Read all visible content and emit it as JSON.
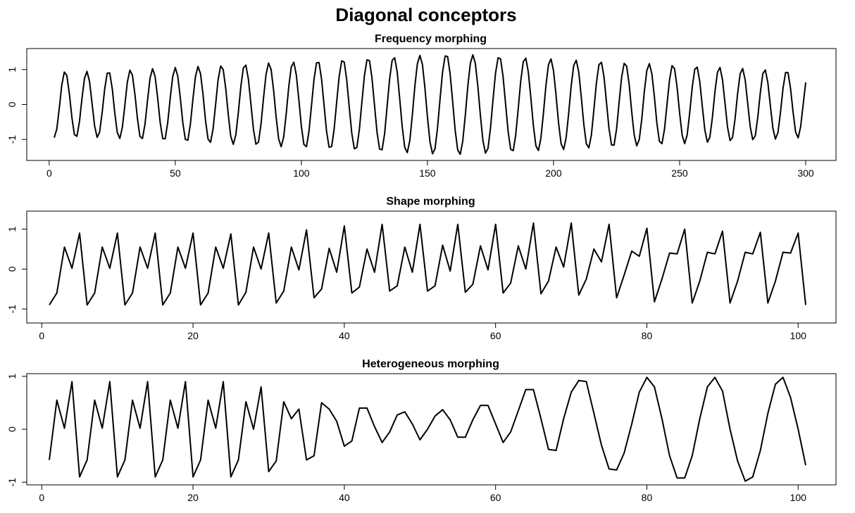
{
  "title": "Diagonal conceptors",
  "chart_data": [
    {
      "type": "line",
      "title": "Frequency morphing",
      "xlabel": "",
      "ylabel": "",
      "xlim": [
        0,
        300
      ],
      "ylim": [
        -1.6,
        1.6
      ],
      "xticks": [
        0,
        50,
        100,
        150,
        200,
        250,
        300
      ],
      "yticks": [
        -1,
        0,
        1
      ],
      "grid": false,
      "x_start": 2,
      "x_end": 300,
      "waveform": {
        "kind": "sinusoid_modulated_frequency",
        "period_at_ends": 8.6,
        "period_at_center": 10.6,
        "amplitude_at_ends": 0.95,
        "amplitude_at_center": 1.45,
        "center_x": 160
      },
      "series": [
        {
          "values_note": "",
          "color": "#000000"
        }
      ]
    },
    {
      "type": "line",
      "title": "Shape morphing",
      "xlabel": "",
      "ylabel": "",
      "xlim": [
        1,
        101
      ],
      "ylim": [
        -1.35,
        1.45
      ],
      "xticks": [
        0,
        20,
        40,
        60,
        80,
        100
      ],
      "yticks": [
        -1,
        0,
        1
      ],
      "grid": false,
      "x": [
        1,
        2,
        3,
        4,
        5,
        6,
        7,
        8,
        9,
        10,
        11,
        12,
        13,
        14,
        15,
        16,
        17,
        18,
        19,
        20,
        21,
        22,
        23,
        24,
        25,
        26,
        27,
        28,
        29,
        30,
        31,
        32,
        33,
        34,
        35,
        36,
        37,
        38,
        39,
        40,
        41,
        42,
        43,
        44,
        45,
        46,
        47,
        48,
        49,
        50,
        51,
        52,
        53,
        54,
        55,
        56,
        57,
        58,
        59,
        60,
        61,
        62,
        63,
        64,
        65,
        66,
        67,
        68,
        69,
        70,
        71,
        72,
        73,
        74,
        75,
        76,
        77,
        78,
        79,
        80,
        81,
        82,
        83,
        84,
        85,
        86,
        87,
        88,
        89,
        90,
        91,
        92,
        93,
        94,
        95,
        96,
        97,
        98,
        99,
        100,
        101
      ],
      "series": [
        {
          "color": "#000000",
          "values": [
            -0.9,
            -0.6,
            0.55,
            0.02,
            0.9,
            -0.9,
            -0.6,
            0.55,
            0.02,
            0.9,
            -0.9,
            -0.6,
            0.55,
            0.02,
            0.9,
            -0.9,
            -0.6,
            0.55,
            0.02,
            0.9,
            -0.9,
            -0.6,
            0.55,
            0.02,
            0.88,
            -0.9,
            -0.58,
            0.55,
            0.0,
            0.9,
            -0.85,
            -0.55,
            0.55,
            -0.02,
            0.98,
            -0.72,
            -0.5,
            0.52,
            -0.08,
            1.08,
            -0.6,
            -0.45,
            0.5,
            -0.08,
            1.12,
            -0.55,
            -0.42,
            0.55,
            -0.08,
            1.12,
            -0.55,
            -0.42,
            0.6,
            -0.05,
            1.12,
            -0.58,
            -0.38,
            0.58,
            -0.02,
            1.12,
            -0.6,
            -0.35,
            0.58,
            0.0,
            1.15,
            -0.62,
            -0.3,
            0.55,
            0.05,
            1.15,
            -0.65,
            -0.25,
            0.5,
            0.18,
            1.12,
            -0.72,
            -0.15,
            0.45,
            0.32,
            1.02,
            -0.82,
            -0.25,
            0.4,
            0.38,
            1.0,
            -0.85,
            -0.3,
            0.42,
            0.38,
            0.95,
            -0.85,
            -0.3,
            0.42,
            0.38,
            0.92,
            -0.85,
            -0.3,
            0.42,
            0.4,
            0.9,
            -0.9
          ]
        }
      ]
    },
    {
      "type": "line",
      "title": "Heterogeneous morphing",
      "xlabel": "",
      "ylabel": "",
      "xlim": [
        1,
        101
      ],
      "ylim": [
        -1.05,
        1.05
      ],
      "xticks": [
        0,
        20,
        40,
        60,
        80,
        100
      ],
      "yticks": [
        -1,
        0,
        1
      ],
      "grid": false,
      "x": [
        1,
        2,
        3,
        4,
        5,
        6,
        7,
        8,
        9,
        10,
        11,
        12,
        13,
        14,
        15,
        16,
        17,
        18,
        19,
        20,
        21,
        22,
        23,
        24,
        25,
        26,
        27,
        28,
        29,
        30,
        31,
        32,
        33,
        34,
        35,
        36,
        37,
        38,
        39,
        40,
        41,
        42,
        43,
        44,
        45,
        46,
        47,
        48,
        49,
        50,
        51,
        52,
        53,
        54,
        55,
        56,
        57,
        58,
        59,
        60,
        61,
        62,
        63,
        64,
        65,
        66,
        67,
        68,
        69,
        70,
        71,
        72,
        73,
        74,
        75,
        76,
        77,
        78,
        79,
        80,
        81,
        82,
        83,
        84,
        85,
        86,
        87,
        88,
        89,
        90,
        91,
        92,
        93,
        94,
        95,
        96,
        97,
        98,
        99,
        100,
        101
      ],
      "series": [
        {
          "color": "#000000",
          "values": [
            -0.58,
            0.55,
            0.02,
            0.9,
            -0.9,
            -0.58,
            0.55,
            0.02,
            0.9,
            -0.9,
            -0.58,
            0.55,
            0.02,
            0.9,
            -0.9,
            -0.58,
            0.55,
            0.02,
            0.9,
            -0.9,
            -0.58,
            0.55,
            0.02,
            0.9,
            -0.9,
            -0.58,
            0.52,
            0.0,
            0.8,
            -0.8,
            -0.6,
            0.52,
            0.2,
            0.38,
            -0.58,
            -0.5,
            0.5,
            0.38,
            0.15,
            -0.32,
            -0.22,
            0.4,
            0.4,
            0.05,
            -0.25,
            -0.05,
            0.27,
            0.33,
            0.1,
            -0.2,
            0.0,
            0.25,
            0.37,
            0.18,
            -0.15,
            -0.15,
            0.18,
            0.45,
            0.45,
            0.1,
            -0.25,
            -0.05,
            0.35,
            0.75,
            0.75,
            0.2,
            -0.38,
            -0.4,
            0.2,
            0.7,
            0.92,
            0.9,
            0.3,
            -0.3,
            -0.75,
            -0.77,
            -0.45,
            0.1,
            0.7,
            0.98,
            0.8,
            0.2,
            -0.5,
            -0.92,
            -0.92,
            -0.5,
            0.2,
            0.8,
            0.98,
            0.72,
            0.0,
            -0.6,
            -0.98,
            -0.9,
            -0.4,
            0.3,
            0.85,
            0.98,
            0.6,
            0.0,
            -0.68
          ]
        }
      ]
    }
  ]
}
